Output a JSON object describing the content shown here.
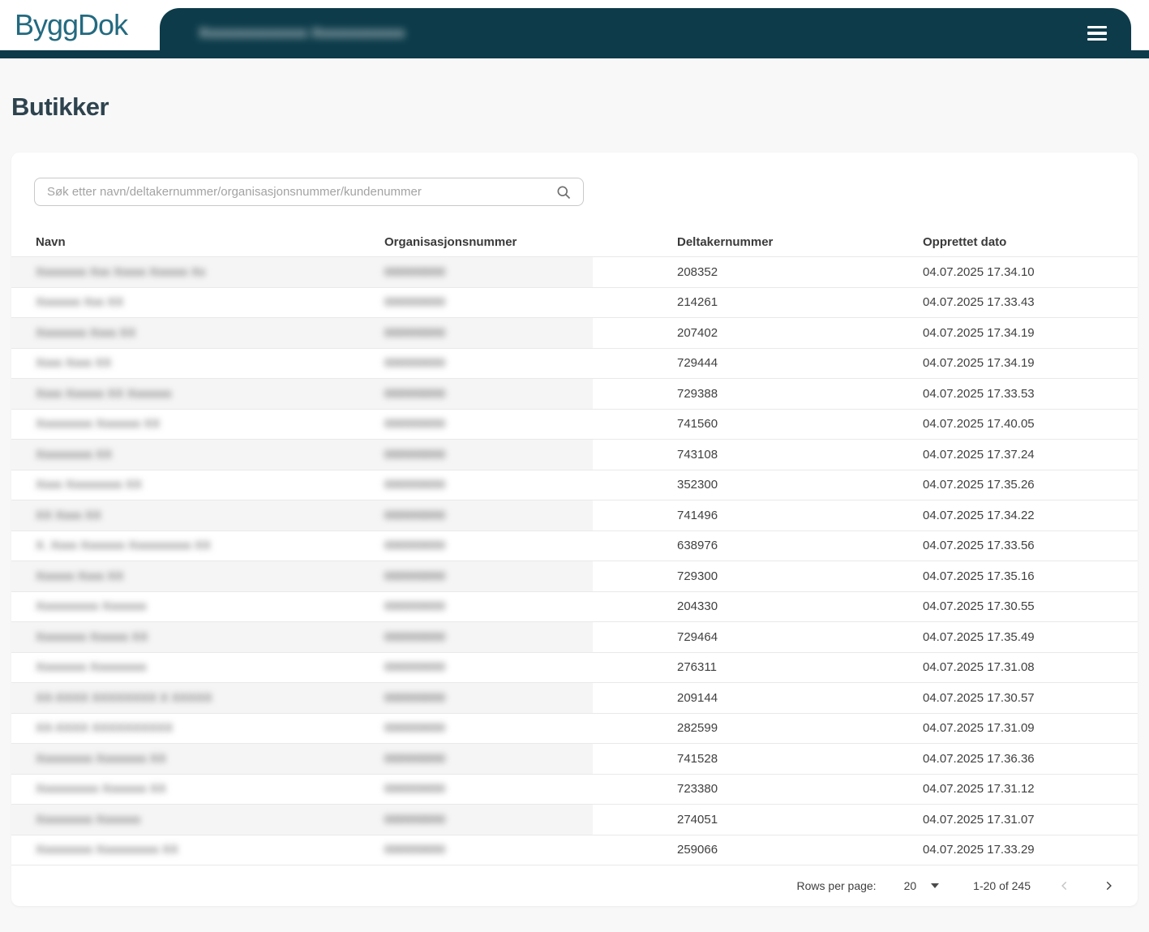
{
  "header": {
    "logo": "ByggDok",
    "tab_title_redacted": "Xxxxxxxxxxxxxx Xxxxxxxxxxxx",
    "menu_icon": "hamburger-icon"
  },
  "page": {
    "title": "Butikker"
  },
  "search": {
    "placeholder": "Søk etter navn/deltakernummer/organisasjonsnummer/kundenummer",
    "value": "",
    "icon": "search-icon"
  },
  "table": {
    "columns": [
      "Navn",
      "Organisasjonsnummer",
      "Deltakernummer",
      "Opprettet dato"
    ],
    "rows": [
      {
        "name_redacted": "Xxxxxxxx Xxx Xxxxx Xxxxxx Xx",
        "org_redacted": "000000000",
        "deltakernummer": "208352",
        "opprettet_dato": "04.07.2025 17.34.10"
      },
      {
        "name_redacted": "Xxxxxxx Xxx XX",
        "org_redacted": "000000000",
        "deltakernummer": "214261",
        "opprettet_dato": "04.07.2025 17.33.43"
      },
      {
        "name_redacted": "Xxxxxxxx Xxxx XX",
        "org_redacted": "000000000",
        "deltakernummer": "207402",
        "opprettet_dato": "04.07.2025 17.34.19"
      },
      {
        "name_redacted": "Xxxx Xxxx XX",
        "org_redacted": "000000000",
        "deltakernummer": "729444",
        "opprettet_dato": "04.07.2025 17.34.19"
      },
      {
        "name_redacted": "Xxxx Xxxxxx XX Xxxxxxx",
        "org_redacted": "000000000",
        "deltakernummer": "729388",
        "opprettet_dato": "04.07.2025 17.33.53"
      },
      {
        "name_redacted": "Xxxxxxxxx Xxxxxxx XX",
        "org_redacted": "000000000",
        "deltakernummer": "741560",
        "opprettet_dato": "04.07.2025 17.40.05"
      },
      {
        "name_redacted": "Xxxxxxxxx XX",
        "org_redacted": "000000000",
        "deltakernummer": "743108",
        "opprettet_dato": "04.07.2025 17.37.24"
      },
      {
        "name_redacted": "Xxxx Xxxxxxxxx XX",
        "org_redacted": "000000000",
        "deltakernummer": "352300",
        "opprettet_dato": "04.07.2025 17.35.26"
      },
      {
        "name_redacted": "XX Xxxx XX",
        "org_redacted": "000000000",
        "deltakernummer": "741496",
        "opprettet_dato": "04.07.2025 17.34.22"
      },
      {
        "name_redacted": "X. Xxxx Xxxxxxx Xxxxxxxxxx XX",
        "org_redacted": "000000000",
        "deltakernummer": "638976",
        "opprettet_dato": "04.07.2025 17.33.56"
      },
      {
        "name_redacted": "Xxxxxx Xxxx XX",
        "org_redacted": "000000000",
        "deltakernummer": "729300",
        "opprettet_dato": "04.07.2025 17.35.16"
      },
      {
        "name_redacted": "Xxxxxxxxxx Xxxxxxx",
        "org_redacted": "000000000",
        "deltakernummer": "204330",
        "opprettet_dato": "04.07.2025 17.30.55"
      },
      {
        "name_redacted": "Xxxxxxxx Xxxxxx XX",
        "org_redacted": "000000000",
        "deltakernummer": "729464",
        "opprettet_dato": "04.07.2025 17.35.49"
      },
      {
        "name_redacted": "Xxxxxxxx Xxxxxxxxx",
        "org_redacted": "000000000",
        "deltakernummer": "276311",
        "opprettet_dato": "04.07.2025 17.31.08"
      },
      {
        "name_redacted": "XX-XXXX XXXXXXXX X XXXXX",
        "org_redacted": "000000000",
        "deltakernummer": "209144",
        "opprettet_dato": "04.07.2025 17.30.57"
      },
      {
        "name_redacted": "XX-XXXX XXXXXXXXXX",
        "org_redacted": "000000000",
        "deltakernummer": "282599",
        "opprettet_dato": "04.07.2025 17.31.09"
      },
      {
        "name_redacted": "Xxxxxxxxx Xxxxxxxx XX",
        "org_redacted": "000000000",
        "deltakernummer": "741528",
        "opprettet_dato": "04.07.2025 17.36.36"
      },
      {
        "name_redacted": "Xxxxxxxxxx Xxxxxxx XX",
        "org_redacted": "000000000",
        "deltakernummer": "723380",
        "opprettet_dato": "04.07.2025 17.31.12"
      },
      {
        "name_redacted": "Xxxxxxxxx Xxxxxxx",
        "org_redacted": "000000000",
        "deltakernummer": "274051",
        "opprettet_dato": "04.07.2025 17.31.07"
      },
      {
        "name_redacted": "Xxxxxxxxx Xxxxxxxxxx XX",
        "org_redacted": "000000000",
        "deltakernummer": "259066",
        "opprettet_dato": "04.07.2025 17.33.29"
      }
    ]
  },
  "pagination": {
    "rows_per_page_label": "Rows per page:",
    "rows_per_page_value": "20",
    "range_label": "1-20 of 245",
    "prev_icon": "chevron-left-icon",
    "next_icon": "chevron-right-icon",
    "caret_icon": "caret-down-icon"
  },
  "colors": {
    "header_bar": "#0d3b4a",
    "brand_teal": "#236a80",
    "title_text": "#2e434e",
    "row_stripe": "#f5f5f5",
    "row_border": "#e9e9e9",
    "page_background": "#f8f8f8"
  }
}
